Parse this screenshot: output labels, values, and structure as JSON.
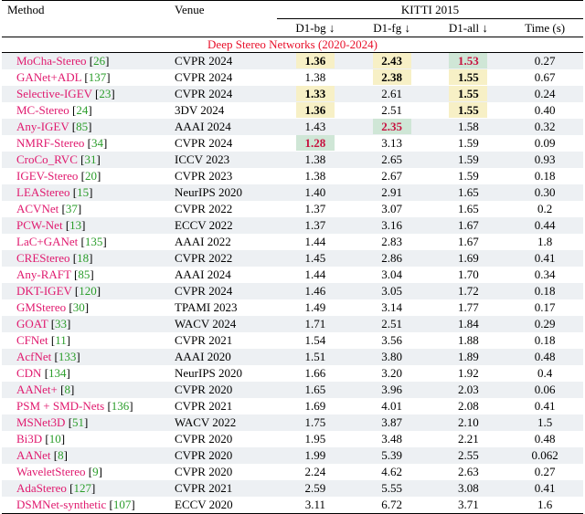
{
  "header": {
    "method": "Method",
    "venue": "Venue",
    "dataset": "KITTI 2015",
    "d1_bg": "D1-bg ↓",
    "d1_fg": "D1-fg ↓",
    "d1_all": "D1-all ↓",
    "time": "Time (s)"
  },
  "section_title": "Deep Stereo Networks (2020-2024)",
  "colors": {
    "name": "#e0196e",
    "cite": "#2a9d2a",
    "best": "#c7113f",
    "section": "#e8102a",
    "yellow": "#f7f0c6",
    "green": "#cfe6d6",
    "shade": "#edf0f3"
  },
  "rows": [
    {
      "name": "MoCha-Stereo",
      "cite": "26",
      "venue": "CVPR 2024",
      "bg": "1.36",
      "fg": "2.43",
      "all": "1.53",
      "time": "0.27",
      "shade": true,
      "st": {
        "bg": "second yellow",
        "fg": "second yellow",
        "all": "best green"
      }
    },
    {
      "name": "GANet+ADL",
      "cite": "137",
      "venue": "CVPR 2024",
      "bg": "1.38",
      "fg": "2.38",
      "all": "1.55",
      "time": "0.67",
      "shade": false,
      "st": {
        "fg": "second yellow",
        "all": "second yellow"
      }
    },
    {
      "name": "Selective-IGEV",
      "cite": "23",
      "venue": "CVPR 2024",
      "bg": "1.33",
      "fg": "2.61",
      "all": "1.55",
      "time": "0.24",
      "shade": true,
      "st": {
        "bg": "second yellow",
        "all": "second yellow"
      }
    },
    {
      "name": "MC-Stereo",
      "cite": "24",
      "venue": "3DV 2024",
      "bg": "1.36",
      "fg": "2.51",
      "all": "1.55",
      "time": "0.40",
      "shade": false,
      "st": {
        "bg": "second yellow",
        "all": "second yellow"
      }
    },
    {
      "name": "Any-IGEV",
      "cite": "85",
      "venue": "AAAI 2024",
      "bg": "1.43",
      "fg": "2.35",
      "all": "1.58",
      "time": "0.32",
      "shade": true,
      "st": {
        "fg": "best green"
      }
    },
    {
      "name": "NMRF-Stereo",
      "cite": "34",
      "venue": "CVPR 2024",
      "bg": "1.28",
      "fg": "3.13",
      "all": "1.59",
      "time": "0.09",
      "shade": false,
      "st": {
        "bg": "best green"
      }
    },
    {
      "name": "CroCo_RVC",
      "cite": "31",
      "venue": "ICCV 2023",
      "bg": "1.38",
      "fg": "2.65",
      "all": "1.59",
      "time": "0.93",
      "shade": true,
      "st": {}
    },
    {
      "name": "IGEV-Stereo",
      "cite": "20",
      "venue": "CVPR 2023",
      "bg": "1.38",
      "fg": "2.67",
      "all": "1.59",
      "time": "0.18",
      "shade": false,
      "st": {}
    },
    {
      "name": "LEAStereo",
      "cite": "15",
      "venue": "NeurIPS 2020",
      "bg": "1.40",
      "fg": "2.91",
      "all": "1.65",
      "time": "0.30",
      "shade": true,
      "st": {}
    },
    {
      "name": "ACVNet",
      "cite": "37",
      "venue": "CVPR 2022",
      "bg": "1.37",
      "fg": "3.07",
      "all": "1.65",
      "time": "0.2",
      "shade": false,
      "st": {}
    },
    {
      "name": "PCW-Net",
      "cite": "13",
      "venue": "ECCV 2022",
      "bg": "1.37",
      "fg": "3.16",
      "all": "1.67",
      "time": "0.44",
      "shade": true,
      "st": {}
    },
    {
      "name": "LaC+GANet",
      "cite": "135",
      "venue": "AAAI 2022",
      "bg": "1.44",
      "fg": "2.83",
      "all": "1.67",
      "time": "1.8",
      "shade": false,
      "st": {}
    },
    {
      "name": "CREStereo",
      "cite": "18",
      "venue": "CVPR 2022",
      "bg": "1.45",
      "fg": "2.86",
      "all": "1.69",
      "time": "0.41",
      "shade": true,
      "st": {}
    },
    {
      "name": "Any-RAFT",
      "cite": "85",
      "venue": "AAAI 2024",
      "bg": "1.44",
      "fg": "3.04",
      "all": "1.70",
      "time": "0.34",
      "shade": false,
      "st": {}
    },
    {
      "name": "DKT-IGEV",
      "cite": "120",
      "venue": "CVPR 2024",
      "bg": "1.46",
      "fg": "3.05",
      "all": "1.72",
      "time": "0.18",
      "shade": true,
      "st": {}
    },
    {
      "name": "GMStereo",
      "cite": "30",
      "venue": "TPAMI 2023",
      "bg": "1.49",
      "fg": "3.14",
      "all": "1.77",
      "time": "0.17",
      "shade": false,
      "st": {}
    },
    {
      "name": "GOAT",
      "cite": "33",
      "venue": "WACV 2024",
      "bg": "1.71",
      "fg": "2.51",
      "all": "1.84",
      "time": "0.29",
      "shade": true,
      "st": {}
    },
    {
      "name": "CFNet",
      "cite": "11",
      "venue": "CVPR 2021",
      "bg": "1.54",
      "fg": "3.56",
      "all": "1.88",
      "time": "0.18",
      "shade": false,
      "st": {}
    },
    {
      "name": "AcfNet",
      "cite": "133",
      "venue": "AAAI 2020",
      "bg": "1.51",
      "fg": "3.80",
      "all": "1.89",
      "time": "0.48",
      "shade": true,
      "st": {}
    },
    {
      "name": "CDN",
      "cite": "134",
      "venue": "NeurIPS 2020",
      "bg": "1.66",
      "fg": "3.20",
      "all": "1.92",
      "time": "0.4",
      "shade": false,
      "st": {}
    },
    {
      "name": "AANet+",
      "cite": "8",
      "venue": "CVPR 2020",
      "bg": "1.65",
      "fg": "3.96",
      "all": "2.03",
      "time": "0.06",
      "shade": true,
      "st": {}
    },
    {
      "name": "PSM + SMD-Nets",
      "cite": "136",
      "venue": "CVPR 2021",
      "bg": "1.69",
      "fg": "4.01",
      "all": "2.08",
      "time": "0.41",
      "shade": false,
      "st": {}
    },
    {
      "name": "MSNet3D",
      "cite": "51",
      "venue": "WACV 2022",
      "bg": "1.75",
      "fg": "3.87",
      "all": "2.10",
      "time": "1.5",
      "shade": true,
      "st": {}
    },
    {
      "name": "Bi3D",
      "cite": "10",
      "venue": "CVPR 2020",
      "bg": "1.95",
      "fg": "3.48",
      "all": "2.21",
      "time": "0.48",
      "shade": false,
      "st": {}
    },
    {
      "name": "AANet",
      "cite": "8",
      "venue": "CVPR 2020",
      "bg": "1.99",
      "fg": "5.39",
      "all": "2.55",
      "time": "0.062",
      "shade": true,
      "st": {}
    },
    {
      "name": "WaveletStereo",
      "cite": "9",
      "venue": "CVPR 2020",
      "bg": "2.24",
      "fg": "4.62",
      "all": "2.63",
      "time": "0.27",
      "shade": false,
      "st": {}
    },
    {
      "name": "AdaStereo",
      "cite": "127",
      "venue": "CVPR 2021",
      "bg": "2.59",
      "fg": "5.55",
      "all": "3.08",
      "time": "0.41",
      "shade": true,
      "st": {}
    },
    {
      "name": "DSMNet-synthetic",
      "cite": "107",
      "venue": "ECCV 2020",
      "bg": "3.11",
      "fg": "6.72",
      "all": "3.71",
      "time": "1.6",
      "shade": false,
      "st": {}
    }
  ]
}
